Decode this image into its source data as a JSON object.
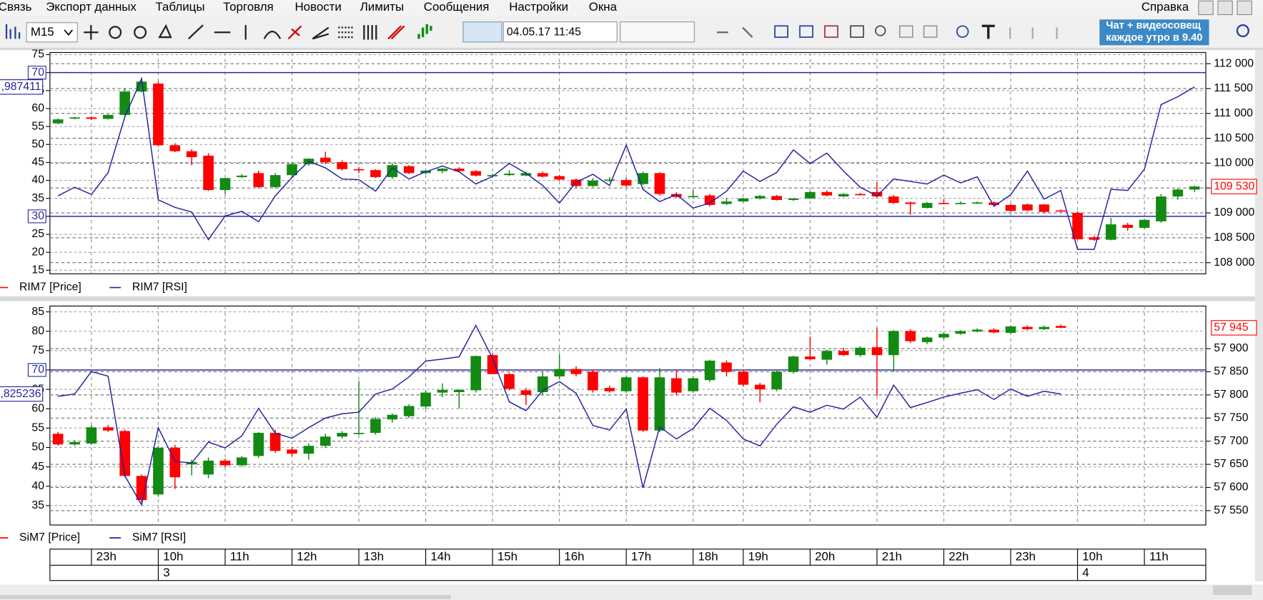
{
  "menu": {
    "items": [
      "Связь",
      "Экспорт данных",
      "Таблицы",
      "Торговля",
      "Новости",
      "Лимиты",
      "Сообщения",
      "Настройки",
      "Окна"
    ],
    "help": "Справка"
  },
  "toolbar": {
    "interval": "M15",
    "datetime": "04.05.17 11:45",
    "banner": [
      "Чат + видеосовещ",
      "каждое утро в 9.40"
    ]
  },
  "time_axis": {
    "hours": [
      null,
      null,
      "23h",
      null,
      null,
      null,
      "10h",
      null,
      null,
      null,
      "11h",
      null,
      null,
      null,
      "12h",
      null,
      null,
      null,
      "13h",
      null,
      null,
      null,
      "14h",
      null,
      null,
      null,
      "15h",
      null,
      null,
      null,
      "16h",
      null,
      null,
      null,
      "17h",
      null,
      null,
      null,
      "18h",
      null,
      null,
      "19h",
      null,
      null,
      null,
      "20h",
      null,
      null,
      null,
      "21h",
      null,
      null,
      null,
      "22h",
      null,
      null,
      null,
      "23h",
      null,
      null,
      null,
      "10h",
      null,
      null,
      null,
      "11h",
      null,
      null,
      null
    ],
    "days": [
      null,
      null,
      null,
      null,
      null,
      null,
      "3",
      null,
      null,
      null,
      null,
      null,
      null,
      null,
      null,
      null,
      null,
      null,
      null,
      null,
      null,
      null,
      null,
      null,
      null,
      null,
      null,
      null,
      null,
      null,
      null,
      null,
      null,
      null,
      null,
      null,
      null,
      null,
      null,
      null,
      null,
      null,
      null,
      null,
      null,
      null,
      null,
      null,
      null,
      null,
      null,
      null,
      null,
      null,
      null,
      null,
      null,
      null,
      null,
      null,
      null,
      "4",
      null,
      null,
      null,
      null,
      null,
      null,
      null
    ]
  },
  "chart_data": [
    {
      "type": "candlestick",
      "grid": true,
      "ylim": [
        14,
        75.6
      ],
      "yticks": [
        15,
        20,
        25,
        30,
        35,
        40,
        45,
        50,
        55,
        60,
        65,
        70,
        75
      ],
      "y2lim": [
        107775,
        112225
      ],
      "y2ticks": [
        {
          "value": 108000,
          "label": "108 000"
        },
        {
          "value": 108500,
          "label": "108 500"
        },
        {
          "value": 109000,
          "label": "109 000"
        },
        {
          "value": 109500,
          "label": "109 500"
        },
        {
          "value": 110000,
          "label": "110 000"
        },
        {
          "value": 110500,
          "label": "110 500"
        },
        {
          "value": 111000,
          "label": "111 000"
        },
        {
          "value": 111500,
          "label": "111 500"
        },
        {
          "value": 112000,
          "label": "112 000"
        }
      ],
      "levels": [
        70,
        30
      ],
      "level_color": "#2b2b9c",
      "rsi_value_label": ",987411",
      "last_price_label": "109 530",
      "series": [
        {
          "name": "RIM7 [Price]",
          "type": "candlestick",
          "axis": "y2",
          "color": "#ff0000",
          "up_color": "#138a13",
          "open": [
            110800,
            110900,
            110920,
            110890,
            110970,
            111440,
            111600,
            110360,
            110240,
            110150,
            109460,
            109720,
            109800,
            109520,
            109760,
            109980,
            110110,
            110020,
            109880,
            109860,
            109720,
            109940,
            109800,
            109840,
            109890,
            109840,
            109750,
            109760,
            109750,
            109800,
            109740,
            109670,
            109540,
            109650,
            109660,
            109580,
            109800,
            109380,
            109320,
            109350,
            109180,
            109230,
            109290,
            109340,
            109260,
            109290,
            109420,
            109330,
            109380,
            109420,
            109330,
            109210,
            109100,
            109200,
            109190,
            109200,
            109210,
            109160,
            109170,
            109170,
            109050,
            109000,
            108510,
            108460,
            108760,
            108700,
            108830,
            109330,
            109470
          ],
          "high": [
            110900,
            110930,
            110940,
            110980,
            111500,
            111720,
            111640,
            110400,
            110280,
            110200,
            109700,
            109780,
            109850,
            109800,
            110020,
            110100,
            110230,
            110060,
            109920,
            109880,
            110000,
            109960,
            109860,
            109900,
            109920,
            109860,
            109790,
            109860,
            109830,
            109830,
            109760,
            109690,
            109700,
            109720,
            109700,
            109830,
            109820,
            109420,
            109460,
            109380,
            109300,
            109300,
            109360,
            109360,
            109300,
            109440,
            109450,
            109400,
            109400,
            109620,
            109360,
            109230,
            109220,
            109280,
            109230,
            109230,
            109230,
            109180,
            109190,
            109180,
            109070,
            109030,
            108540,
            108900,
            108800,
            108880,
            109380,
            109490,
            109550
          ],
          "low": [
            110780,
            110880,
            110870,
            110880,
            110960,
            111420,
            110340,
            110220,
            109960,
            109440,
            109380,
            109700,
            109500,
            109500,
            109700,
            109950,
            109980,
            109850,
            109800,
            109700,
            109680,
            109780,
            109780,
            109800,
            109820,
            109730,
            109720,
            109740,
            109740,
            109710,
            109650,
            109510,
            109520,
            109620,
            109520,
            109560,
            109350,
            109300,
            109300,
            109130,
            109160,
            109220,
            109270,
            109250,
            109240,
            109280,
            109330,
            109320,
            109350,
            109300,
            109180,
            108960,
            109090,
            109180,
            109170,
            109180,
            109150,
            109020,
            109030,
            109000,
            109020,
            108460,
            108440,
            108450,
            108640,
            108680,
            108800,
            109270,
            109420
          ],
          "close": [
            110880,
            110920,
            110890,
            110970,
            111440,
            111640,
            110360,
            110240,
            110120,
            109460,
            109700,
            109750,
            109520,
            109760,
            109980,
            110090,
            110020,
            109880,
            109860,
            109720,
            109960,
            109800,
            109850,
            109890,
            109840,
            109750,
            109760,
            109790,
            109800,
            109730,
            109670,
            109540,
            109650,
            109670,
            109550,
            109800,
            109380,
            109320,
            109340,
            109160,
            109230,
            109290,
            109340,
            109260,
            109290,
            109420,
            109350,
            109380,
            109370,
            109330,
            109200,
            109180,
            109200,
            109190,
            109200,
            109210,
            109160,
            109040,
            109050,
            109020,
            109040,
            108470,
            108460,
            108770,
            108700,
            108860,
            109330,
            109470,
            109530
          ]
        },
        {
          "name": "RIM7 [RSI]",
          "type": "line",
          "axis": "y",
          "color": "#2323a0",
          "values": [
            35.7,
            38.1,
            36.1,
            42.2,
            57.7,
            68.3,
            34.6,
            32.5,
            31.2,
            23.5,
            30.1,
            31.4,
            28.5,
            35.7,
            40.8,
            45.3,
            43.5,
            40.4,
            40.2,
            37.0,
            43.5,
            40.4,
            42.4,
            44.0,
            42.4,
            39.0,
            41.1,
            44.7,
            42.0,
            38.6,
            33.7,
            39.5,
            41.7,
            38.6,
            49.8,
            37.5,
            34.1,
            36.1,
            32.3,
            33.7,
            37.0,
            42.6,
            39.7,
            42.2,
            48.5,
            44.7,
            47.6,
            42.6,
            38.1,
            35.7,
            40.4,
            39.7,
            39.0,
            41.5,
            39.3,
            41.0,
            32.8,
            36.0,
            42.6,
            34.8,
            37.2,
            20.8,
            20.8,
            37.5,
            37.2,
            43.1,
            61.1,
            63.3,
            66.0
          ]
        }
      ]
    },
    {
      "type": "candlestick",
      "grid": true,
      "ylim": [
        30,
        86.5
      ],
      "yticks": [
        35,
        40,
        45,
        50,
        55,
        60,
        65,
        70,
        75,
        80,
        85
      ],
      "y2lim": [
        57519,
        57992
      ],
      "y2ticks": [
        {
          "value": 57550,
          "label": "57 550"
        },
        {
          "value": 57600,
          "label": "57 600"
        },
        {
          "value": 57650,
          "label": "57 650"
        },
        {
          "value": 57700,
          "label": "57 700"
        },
        {
          "value": 57750,
          "label": "57 750"
        },
        {
          "value": 57800,
          "label": "57 800"
        },
        {
          "value": 57850,
          "label": "57 850"
        },
        {
          "value": 57900,
          "label": "57 900"
        }
      ],
      "levels": [
        70
      ],
      "level_color": "#2b2b9c",
      "rsi_value_label": ",825236",
      "last_price_label": "57 945",
      "series": [
        {
          "name": "SiM7 [Price]",
          "type": "candlestick",
          "axis": "y2",
          "color": "#ff0000",
          "up_color": "#138a13",
          "open": [
            57716,
            57693,
            57695,
            57730,
            57722,
            57625,
            57585,
            57686,
            57650,
            57628,
            57658,
            57648,
            57668,
            57718,
            57682,
            57673,
            57690,
            57710,
            57716,
            57718,
            57747,
            57754,
            57775,
            57805,
            57806,
            57810,
            57886,
            57845,
            57810,
            57806,
            57840,
            57856,
            57850,
            57815,
            57808,
            57838,
            57723,
            57836,
            57808,
            57832,
            57870,
            57850,
            57822,
            57812,
            57850,
            57883,
            57876,
            57895,
            57886,
            57903,
            57886,
            57938,
            57914,
            57924,
            57932,
            57937,
            57941,
            57934,
            57947,
            57942,
            57949,
            null,
            null,
            null,
            null,
            null,
            null,
            null,
            null
          ],
          "high": [
            57720,
            57702,
            57735,
            57735,
            57725,
            57628,
            57690,
            57692,
            57660,
            57665,
            57662,
            57668,
            57720,
            57725,
            57688,
            57695,
            57716,
            57722,
            57830,
            57752,
            57760,
            57780,
            57810,
            57825,
            57812,
            57885,
            57890,
            57848,
            57815,
            57850,
            57888,
            57862,
            57855,
            57820,
            57842,
            57840,
            57858,
            57855,
            57840,
            57876,
            57875,
            57855,
            57826,
            57852,
            57885,
            57926,
            57898,
            57902,
            57905,
            57945,
            57940,
            57942,
            57926,
            57935,
            57940,
            57944,
            57944,
            57950,
            57950,
            57950,
            57952,
            null,
            null,
            null,
            null,
            null,
            null,
            null,
            null
          ],
          "low": [
            57690,
            57690,
            57692,
            57720,
            57622,
            57568,
            57580,
            57597,
            57626,
            57620,
            57645,
            57645,
            57664,
            57675,
            57668,
            57660,
            57685,
            57706,
            57714,
            57714,
            57740,
            57750,
            57770,
            57795,
            57770,
            57805,
            57845,
            57810,
            57778,
            57800,
            57835,
            57840,
            57805,
            57805,
            57805,
            57720,
            57720,
            57800,
            57805,
            57828,
            57840,
            57818,
            57784,
            57808,
            57846,
            57875,
            57865,
            57884,
            57882,
            57798,
            57850,
            57912,
            57910,
            57920,
            57930,
            57935,
            57933,
            57932,
            57940,
            57940,
            57944,
            null,
            null,
            null,
            null,
            null,
            null,
            null,
            null
          ],
          "close": [
            57693,
            57698,
            57730,
            57723,
            57625,
            57573,
            57686,
            57622,
            57655,
            57658,
            57648,
            57665,
            57718,
            57679,
            57673,
            57690,
            57710,
            57718,
            57718,
            57748,
            57757,
            57776,
            57805,
            57811,
            57811,
            57884,
            57845,
            57813,
            57800,
            57840,
            57856,
            57845,
            57810,
            57808,
            57838,
            57723,
            57838,
            57805,
            57836,
            57874,
            57850,
            57822,
            57812,
            57850,
            57883,
            57877,
            57895,
            57886,
            57902,
            57886,
            57938,
            57916,
            57924,
            57932,
            57938,
            57941,
            57935,
            57948,
            57942,
            57947,
            57945,
            null,
            null,
            null,
            null,
            null,
            null,
            null,
            null
          ]
        },
        {
          "name": "SiM7 [RSI]",
          "type": "line",
          "axis": "y",
          "color": "#2323a0",
          "values": [
            63.2,
            63.8,
            69.6,
            68.4,
            42.7,
            35.2,
            55.1,
            46.4,
            46.0,
            51.4,
            49.9,
            53.0,
            60.1,
            53.7,
            52.4,
            55.1,
            57.6,
            58.7,
            59.1,
            63.8,
            65.1,
            68.2,
            72.3,
            72.8,
            73.4,
            81.5,
            73.0,
            61.8,
            59.5,
            64.7,
            67.0,
            64.0,
            55.7,
            54.5,
            59.9,
            39.6,
            55.3,
            52.2,
            54.9,
            60.1,
            57.0,
            52.2,
            50.4,
            56.0,
            60.5,
            59.1,
            60.9,
            59.9,
            63.0,
            57.8,
            66.1,
            60.3,
            61.6,
            63.0,
            64.0,
            64.9,
            62.4,
            65.1,
            63.2,
            64.5,
            63.8,
            null,
            null,
            null,
            null,
            null,
            null,
            null,
            null
          ]
        }
      ]
    }
  ]
}
